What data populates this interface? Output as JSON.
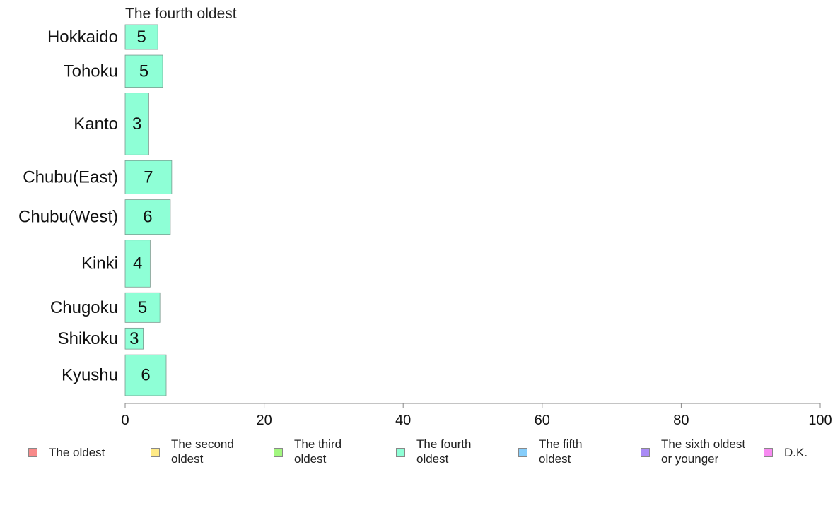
{
  "chart_data": {
    "type": "bar",
    "orientation": "horizontal",
    "title": "The fourth oldest",
    "categories": [
      "Hokkaido",
      "Tohoku",
      "Kanto",
      "Chubu(East)",
      "Chubu(West)",
      "Kinki",
      "Chugoku",
      "Shikoku",
      "Kyushu"
    ],
    "series": [
      {
        "name": "The fourth oldest",
        "values": [
          4.7,
          5.4,
          3.4,
          6.7,
          6.5,
          3.6,
          5.0,
          2.6,
          5.9
        ],
        "labels": [
          "5",
          "5",
          "3",
          "7",
          "6",
          "4",
          "5",
          "3",
          "6"
        ],
        "color": "#8effd6"
      }
    ],
    "xlim": [
      0,
      100
    ],
    "xticks": [
      "0",
      "20",
      "40",
      "60",
      "80",
      "100"
    ],
    "xtick_values": [
      0,
      20,
      40,
      60,
      80,
      100
    ],
    "grid": false,
    "legend_position": "bottom",
    "bar_relative_weights": [
      1.0,
      1.3,
      2.5,
      1.35,
      1.4,
      1.9,
      1.2,
      0.85,
      1.65
    ]
  },
  "legend": {
    "items": [
      {
        "label": "The oldest",
        "color": "#f88a8a"
      },
      {
        "label": "The second\noldest",
        "color": "#ffea86"
      },
      {
        "label": "The third\noldest",
        "color": "#a2f77f"
      },
      {
        "label": "The fourth\noldest",
        "color": "#8effd6"
      },
      {
        "label": "The fifth\noldest",
        "color": "#86cdfa"
      },
      {
        "label": "The sixth oldest\nor younger",
        "color": "#aa8bf6"
      },
      {
        "label": "D.K.",
        "color": "#f78af1"
      }
    ]
  }
}
